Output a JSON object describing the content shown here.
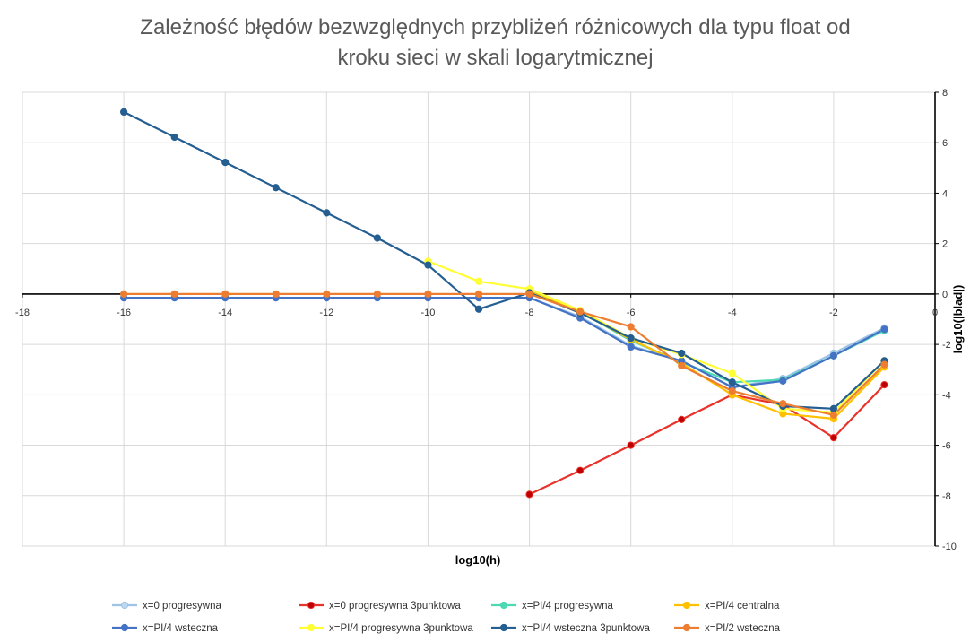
{
  "chart_data": {
    "type": "line",
    "title_line1": "Zależność błędów bezwzględnych przybliżeń różnicowych dla typu float od",
    "title_line2": "kroku sieci w skali logarytmicznej",
    "xlabel": "log10(h)",
    "ylabel": "log10(|blad|)",
    "xlim": [
      -18,
      0
    ],
    "ylim": [
      -10,
      8
    ],
    "x_ticks": [
      -18,
      -16,
      -14,
      -12,
      -10,
      -8,
      -6,
      -4,
      -2,
      0
    ],
    "y_ticks": [
      8,
      6,
      4,
      2,
      0,
      -2,
      -4,
      -6,
      -8,
      -10
    ],
    "grid": true,
    "legend_position": "bottom",
    "series": [
      {
        "name": "x=0 progresywna",
        "color": "#9dc3e6",
        "marker_fill": "#bdd7ee",
        "x": [
          -16,
          -15,
          -14,
          -13,
          -12,
          -11,
          -10,
          -9,
          -8,
          -7,
          -6,
          -5,
          -4,
          -3,
          -2,
          -1
        ],
        "y": [
          -0.15,
          -0.15,
          -0.15,
          -0.15,
          -0.15,
          -0.15,
          -0.15,
          -0.15,
          -0.15,
          -0.9,
          -2.05,
          -2.65,
          -3.7,
          -3.35,
          -2.35,
          -1.35
        ]
      },
      {
        "name": "x=0 progresywna 3punktowa",
        "color": "#e8322a",
        "marker_fill": "#c00000",
        "x": [
          -8,
          -7,
          -6,
          -5,
          -4,
          -3,
          -2,
          -1
        ],
        "y": [
          -7.95,
          -7.0,
          -6.0,
          -4.98,
          -4.0,
          -4.4,
          -5.7,
          -3.6
        ]
      },
      {
        "name": "x=PI/4 progresywna",
        "color": "#4dd9b4",
        "marker_fill": "#4dd9b4",
        "x": [
          -8,
          -7,
          -6,
          -5,
          -4,
          -3,
          -2,
          -1
        ],
        "y": [
          0.15,
          -0.7,
          -1.85,
          -2.7,
          -3.5,
          -3.4,
          -2.45,
          -1.45
        ]
      },
      {
        "name": "x=PI/4 centralna",
        "color": "#ffc000",
        "marker_fill": "#ffc000",
        "x": [
          -8,
          -7,
          -6,
          -5,
          -4,
          -3,
          -2,
          -1
        ],
        "y": [
          0.1,
          -0.7,
          -1.8,
          -2.75,
          -4.0,
          -4.75,
          -4.95,
          -2.9
        ]
      },
      {
        "name": "x=PI/4 wsteczna",
        "color": "#4472c4",
        "marker_fill": "#4472c4",
        "x": [
          -16,
          -15,
          -14,
          -13,
          -12,
          -11,
          -10,
          -9,
          -8,
          -7,
          -6,
          -5,
          -4,
          -3,
          -2,
          -1
        ],
        "y": [
          -0.15,
          -0.15,
          -0.15,
          -0.15,
          -0.15,
          -0.15,
          -0.15,
          -0.15,
          -0.15,
          -0.95,
          -2.1,
          -2.65,
          -3.7,
          -3.45,
          -2.45,
          -1.4
        ]
      },
      {
        "name": "x=PI/4 progresywna 3punktowa",
        "color": "#ffff33",
        "marker_fill": "#ffff33",
        "x": [
          -10,
          -9,
          -8,
          -7,
          -6,
          -5,
          -4,
          -3,
          -2,
          -1
        ],
        "y": [
          1.3,
          0.5,
          0.2,
          -0.65,
          -1.75,
          -2.4,
          -3.15,
          -4.55,
          -4.7,
          -2.65
        ]
      },
      {
        "name": "x=PI/4 wsteczna 3punktowa",
        "color": "#255e91",
        "marker_fill": "#255e91",
        "x": [
          -16,
          -15,
          -14,
          -13,
          -12,
          -11,
          -10,
          -9,
          -8,
          -7,
          -6,
          -5,
          -4,
          -3,
          -2,
          -1
        ],
        "y": [
          7.22,
          6.22,
          5.22,
          4.22,
          3.22,
          2.22,
          1.15,
          -0.6,
          0.05,
          -0.75,
          -1.75,
          -2.35,
          -3.5,
          -4.45,
          -4.55,
          -2.65
        ]
      },
      {
        "name": "x=PI/2 wsteczna",
        "color": "#ed7d31",
        "marker_fill": "#ed7d31",
        "x": [
          -16,
          -15,
          -14,
          -13,
          -12,
          -11,
          -10,
          -9,
          -8,
          -7,
          -6,
          -5,
          -4,
          -3,
          -2,
          -1
        ],
        "y": [
          0,
          0,
          0,
          0,
          0,
          0,
          0,
          0,
          0,
          -0.7,
          -1.3,
          -2.85,
          -3.85,
          -4.35,
          -4.8,
          -2.8
        ]
      }
    ]
  }
}
